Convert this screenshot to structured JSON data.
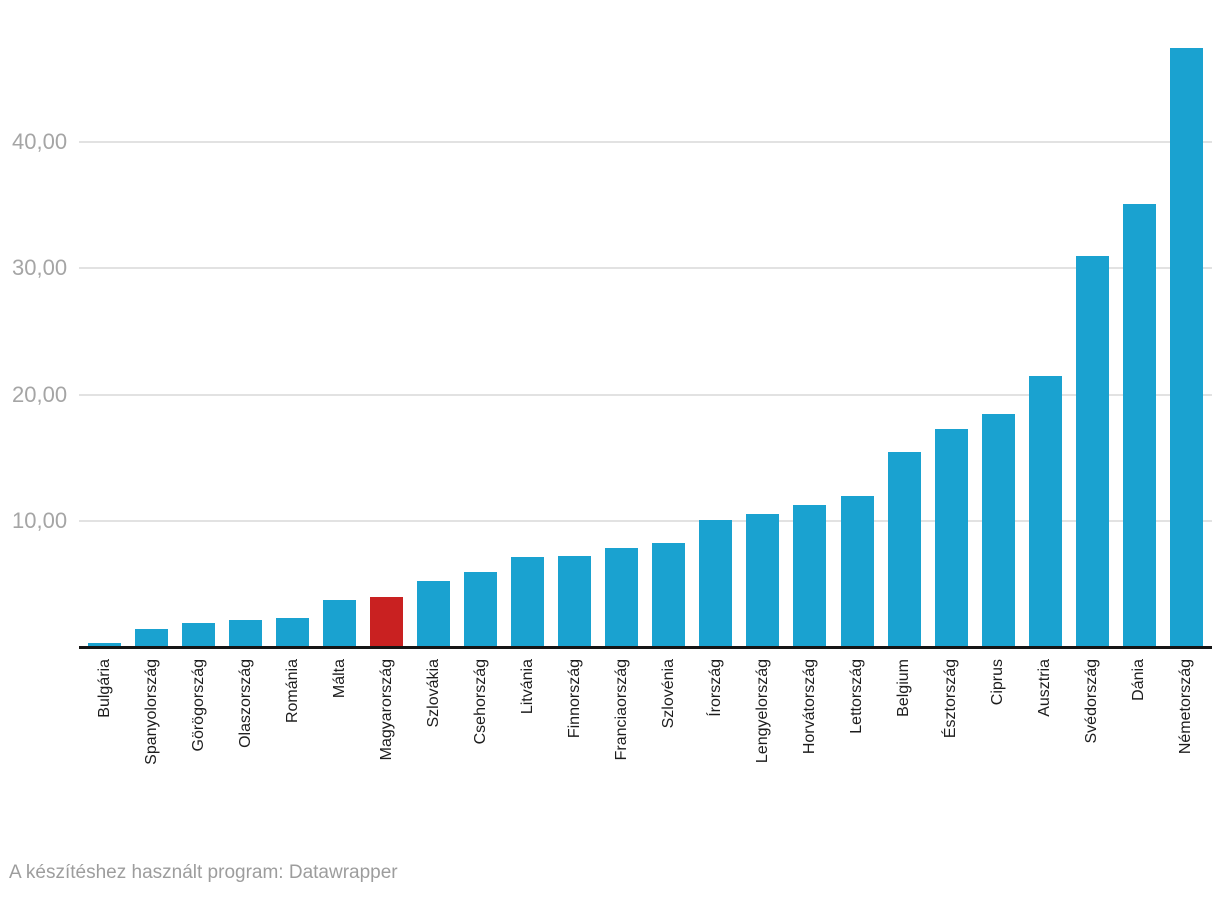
{
  "footer": {
    "text": "A készítéshez használt program: Datawrapper"
  },
  "chart_data": {
    "type": "bar",
    "title": "",
    "xlabel": "",
    "ylabel": "",
    "categories": [
      "Bulgária",
      "Spanyolország",
      "Görögország",
      "Olaszország",
      "Románia",
      "Málta",
      "Magyarország",
      "Szlovákia",
      "Csehország",
      "Litvánia",
      "Finnország",
      "Franciaország",
      "Szlovénia",
      "Írország",
      "Lengyelország",
      "Horvátország",
      "Lettország",
      "Belgium",
      "Észtország",
      "Ciprus",
      "Ausztria",
      "Svédország",
      "Dánia",
      "Németország"
    ],
    "values": [
      0.4,
      1.5,
      2.0,
      2.2,
      2.4,
      3.8,
      4.0,
      5.3,
      6.0,
      7.2,
      7.3,
      7.9,
      8.3,
      10.1,
      10.6,
      11.3,
      12.0,
      15.5,
      17.3,
      18.5,
      21.5,
      31.0,
      35.1,
      47.4
    ],
    "highlight_category": "Magyarország",
    "highlight_index": 6,
    "y_ticks": [
      {
        "value": 10,
        "label": "10,00"
      },
      {
        "value": 20,
        "label": "20,00"
      },
      {
        "value": 30,
        "label": "30,00"
      },
      {
        "value": 40,
        "label": "40,00"
      }
    ],
    "ylim": [
      0,
      51.2
    ],
    "grid": "horizontal-lines-on",
    "legend": "none",
    "colors": {
      "bar": "#1aa2d0",
      "highlight": "#c92121",
      "gridline": "#e2e2e2",
      "axis_line": "#151515",
      "tick_label": "#a5a5a5",
      "category_label": "#1d1d1d",
      "footer_text": "#9d9d9d"
    }
  }
}
